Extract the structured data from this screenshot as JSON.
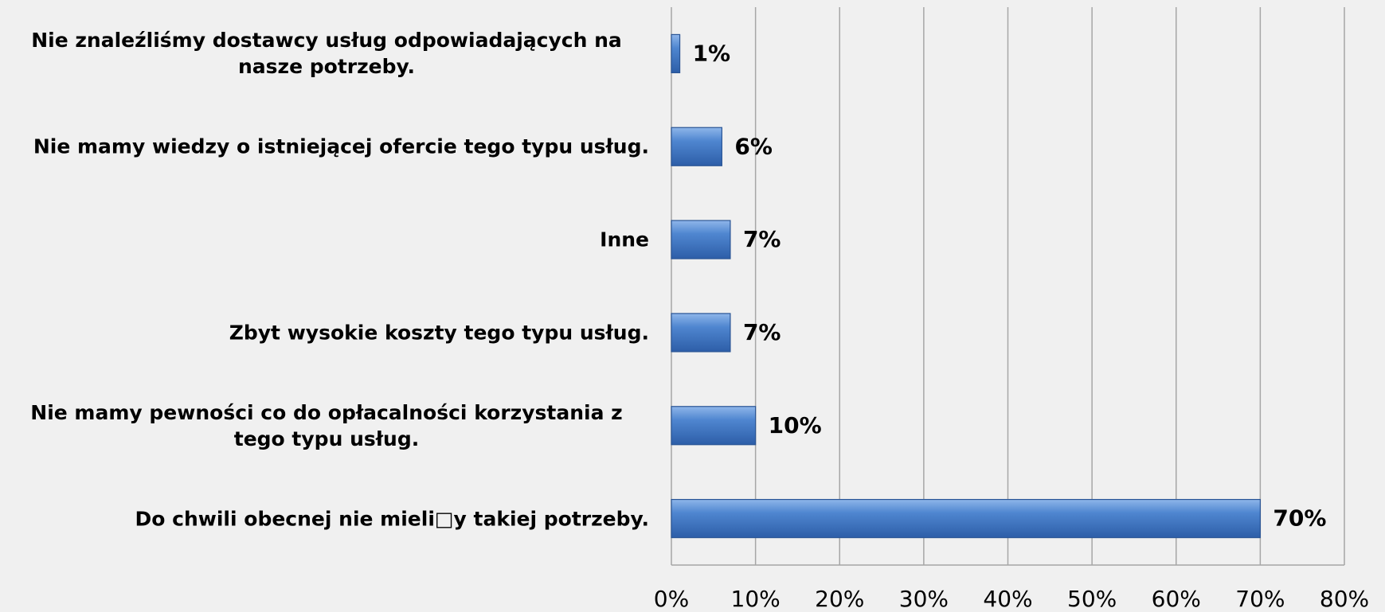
{
  "chart_data": {
    "type": "bar",
    "orientation": "horizontal",
    "categories": [
      "Nie znaleźliśmy dostawcy usług odpowiadających na nasze potrzeby.",
      "Nie mamy wiedzy o istniejącej ofercie tego typu usług.",
      "Inne",
      "Zbyt wysokie koszty tego typu usług.",
      "Nie mamy pewności co do opłacalności korzystania z tego typu usług.",
      "Do chwili obecnej nie mieli□y takiej potrzeby."
    ],
    "values": [
      1,
      6,
      7,
      7,
      10,
      70
    ],
    "value_labels": [
      "1%",
      "6%",
      "7%",
      "7%",
      "10%",
      "70%"
    ],
    "color": "#4a7fc9",
    "xlim": [
      0,
      80
    ],
    "xticks": [
      {
        "value": 0,
        "label": "0%"
      },
      {
        "value": 10,
        "label": "10%"
      },
      {
        "value": 20,
        "label": "20%"
      },
      {
        "value": 30,
        "label": "30%"
      },
      {
        "value": 40,
        "label": "40%"
      },
      {
        "value": 50,
        "label": "50%"
      },
      {
        "value": 60,
        "label": "60%"
      },
      {
        "value": 70,
        "label": "70%"
      },
      {
        "value": 80,
        "label": "80%"
      }
    ],
    "grid": true
  }
}
